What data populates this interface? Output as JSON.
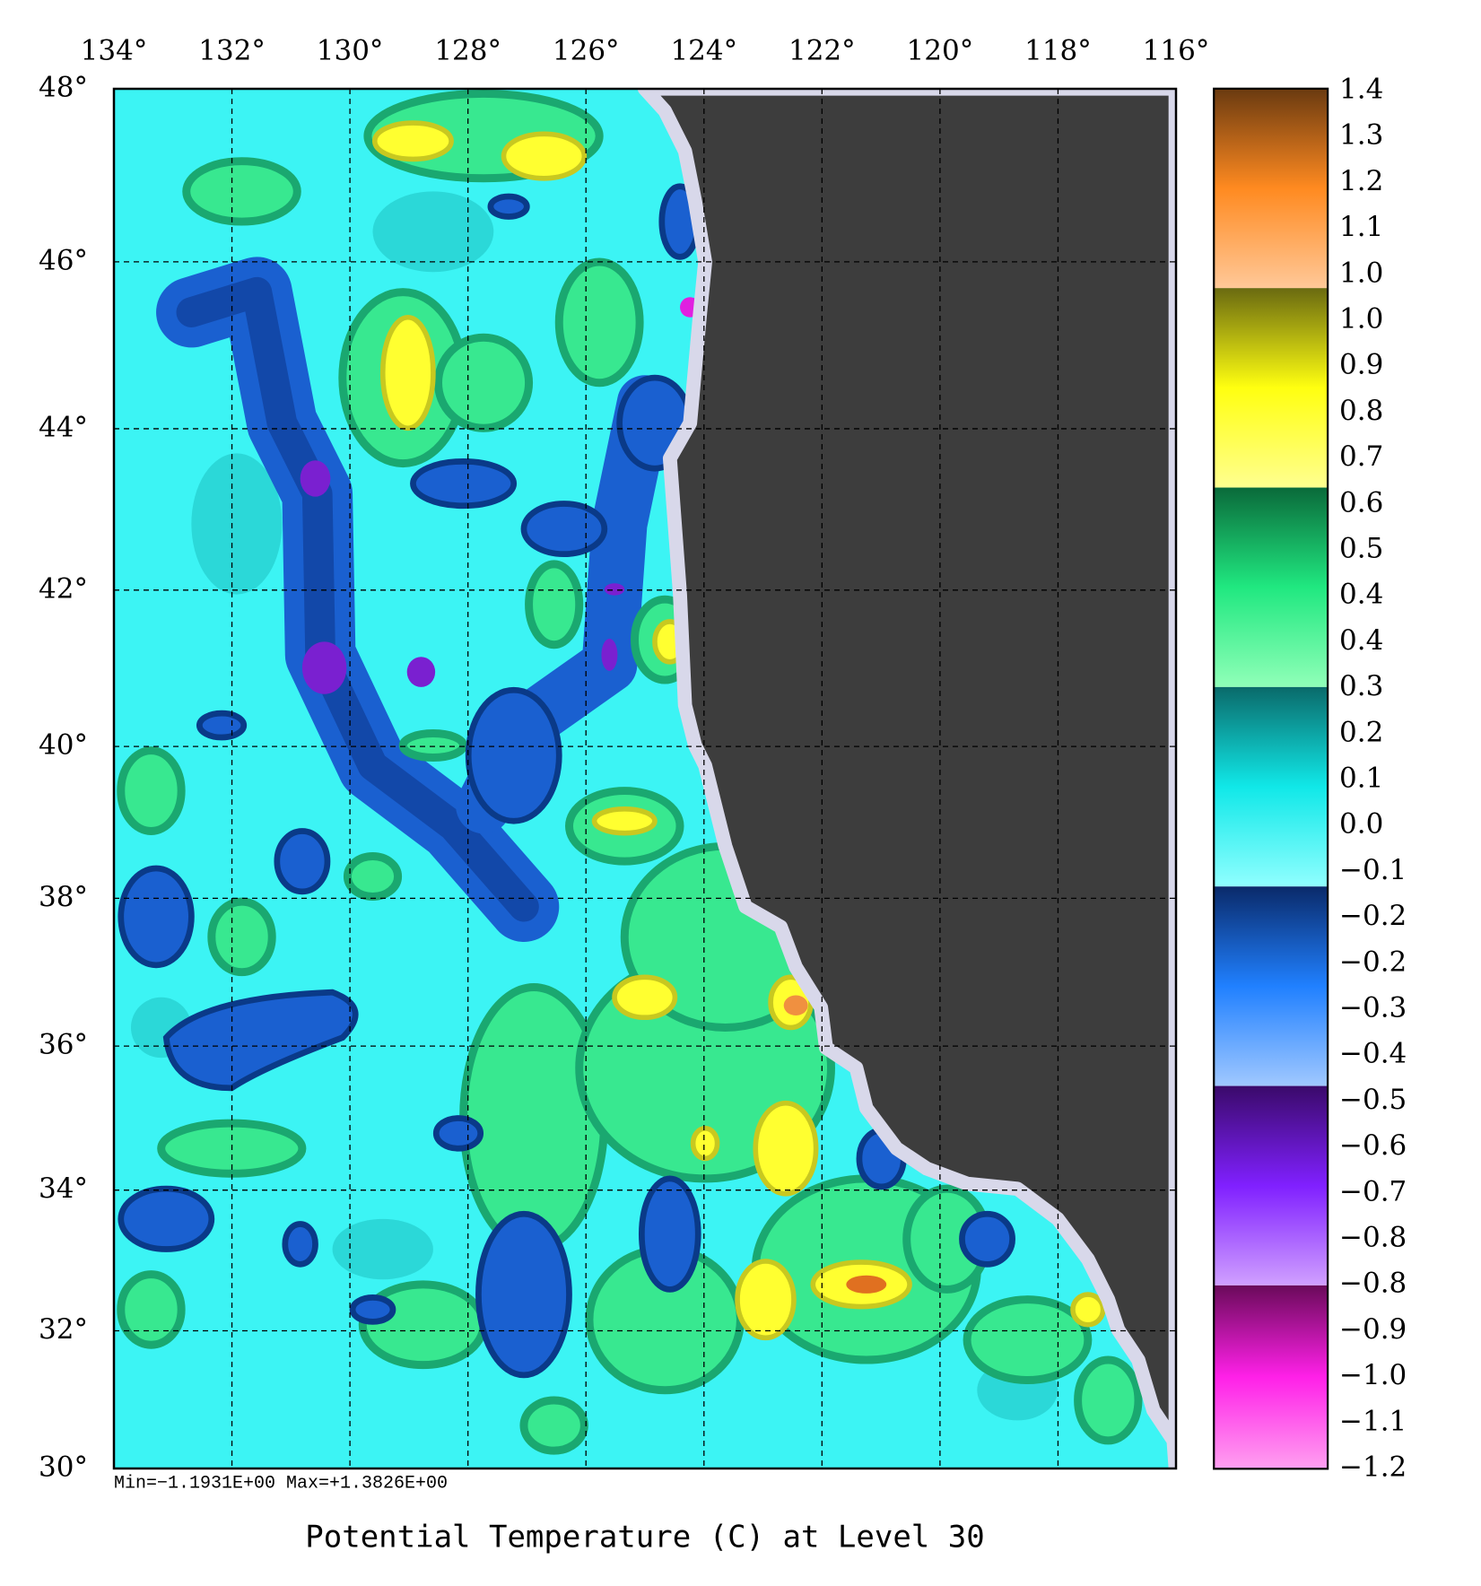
{
  "map": {
    "title": "Potential Temperature (C) at Level 30",
    "stats": "Min=−1.1931E+00   Max=+1.3826E+00",
    "projection": "mercator",
    "grid": true,
    "xlim": [
      134,
      116
    ],
    "xticks": [
      {
        "value": 134,
        "label": "134°"
      },
      {
        "value": 132,
        "label": "132°"
      },
      {
        "value": 130,
        "label": "130°"
      },
      {
        "value": 128,
        "label": "128°"
      },
      {
        "value": 126,
        "label": "126°"
      },
      {
        "value": 124,
        "label": "124°"
      },
      {
        "value": 122,
        "label": "122°"
      },
      {
        "value": 120,
        "label": "120°"
      },
      {
        "value": 118,
        "label": "118°"
      },
      {
        "value": 116,
        "label": "116°"
      }
    ],
    "ylim": [
      30,
      48
    ],
    "yticks": [
      {
        "value": 48,
        "label": "48°"
      },
      {
        "value": 46,
        "label": "46°"
      },
      {
        "value": 44,
        "label": "44°"
      },
      {
        "value": 42,
        "label": "42°"
      },
      {
        "value": 40,
        "label": "40°"
      },
      {
        "value": 38,
        "label": "38°"
      },
      {
        "value": 36,
        "label": "36°"
      },
      {
        "value": 34,
        "label": "34°"
      },
      {
        "value": 32,
        "label": "32°"
      },
      {
        "value": 30,
        "label": "30°"
      }
    ]
  },
  "colorbar": {
    "labels": [
      "1.4",
      "1.3",
      "1.2",
      "1.1",
      "1.0",
      "1.0",
      "0.9",
      "0.8",
      "0.7",
      "0.6",
      "0.5",
      "0.4",
      "0.4",
      "0.3",
      "0.2",
      "0.1",
      "0.0",
      "−0.1",
      "−0.2",
      "−0.2",
      "−0.3",
      "−0.4",
      "−0.5",
      "−0.6",
      "−0.7",
      "−0.8",
      "−0.8",
      "−0.9",
      "−1.0",
      "−1.1",
      "−1.2"
    ]
  }
}
